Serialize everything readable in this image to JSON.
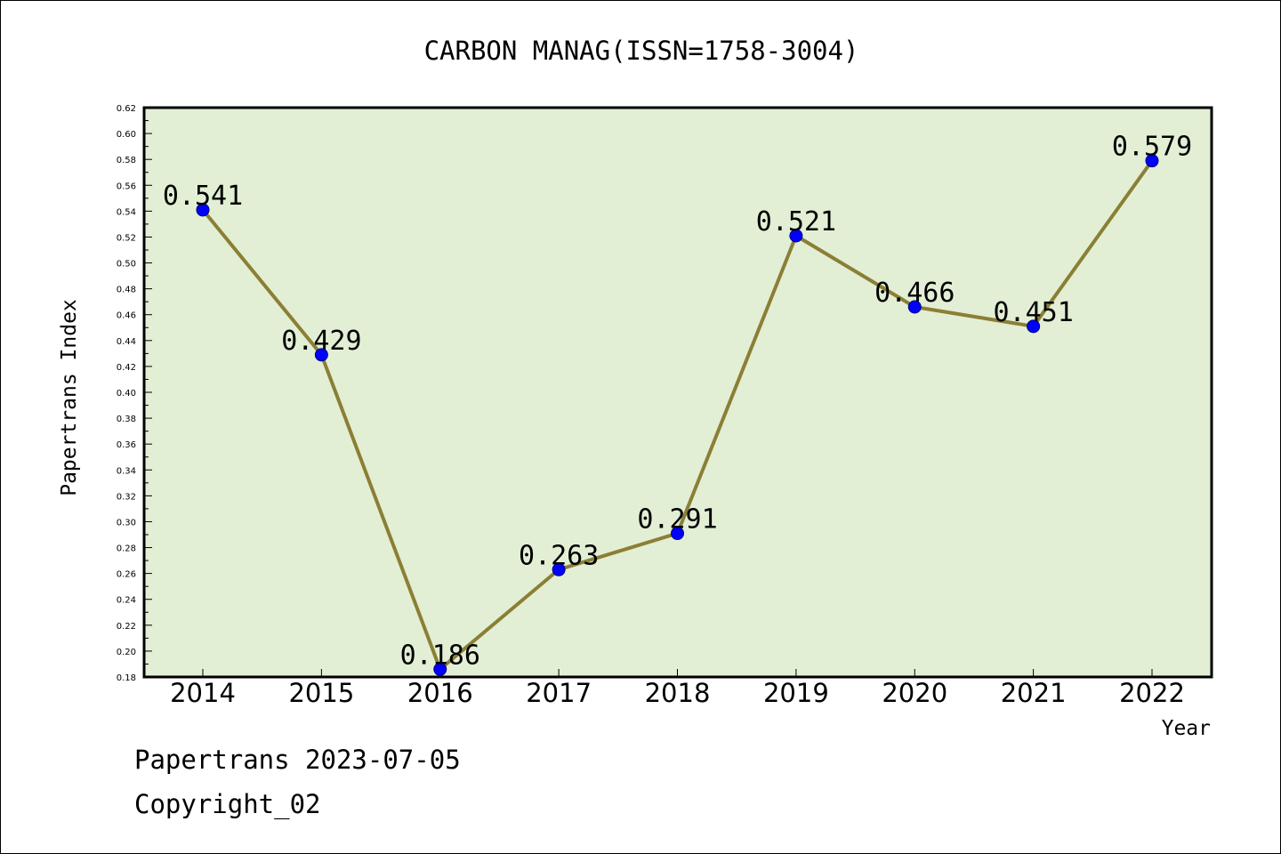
{
  "chart_data": {
    "type": "line",
    "title": "CARBON MANAG(ISSN=1758-3004)",
    "xlabel": "Year",
    "ylabel": "Papertrans Index",
    "categories": [
      "2014",
      "2015",
      "2016",
      "2017",
      "2018",
      "2019",
      "2020",
      "2021",
      "2022"
    ],
    "values": [
      0.541,
      0.429,
      0.186,
      0.263,
      0.291,
      0.521,
      0.466,
      0.451,
      0.579
    ],
    "data_labels": [
      "0.541",
      "0.429",
      "0.186",
      "0.263",
      "0.291",
      "0.521",
      "0.466",
      "0.451",
      "0.579"
    ],
    "yticks": [
      "0.18",
      "0.20",
      "0.22",
      "0.24",
      "0.26",
      "0.28",
      "0.30",
      "0.32",
      "0.34",
      "0.36",
      "0.38",
      "0.40",
      "0.42",
      "0.44",
      "0.46",
      "0.48",
      "0.50",
      "0.52",
      "0.54",
      "0.56",
      "0.58",
      "0.60",
      "0.62"
    ],
    "ylim": [
      0.18,
      0.62
    ],
    "grid": false,
    "colors": {
      "plot_background": "#e2efd5",
      "line": "#8b7f35",
      "marker": "#0000ff"
    }
  },
  "footer": {
    "date_line": "Papertrans 2023-07-05",
    "copyright": "Copyright_02"
  }
}
